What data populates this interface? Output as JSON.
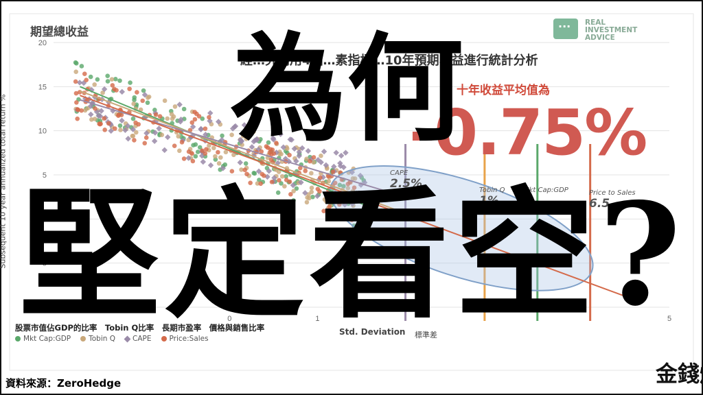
{
  "header": {
    "chart_title": "期望總收益",
    "subtitle": "經…究利用4個…素指標…10年預期收益進行統計分析",
    "avg_label": "十年收益平均值為",
    "big_value": "-0.75%",
    "headline_line1": "為何",
    "headline_line2": "堅定看空?"
  },
  "logo": {
    "text": "REAL\nINVESTMENT\nADVICE",
    "color": "#7fb89a"
  },
  "source": "資料來源：ZeroHedge",
  "brand_mark": "金錢爆",
  "axis": {
    "ylabel": "Subsequent 10 year annualized total return %",
    "xlabel": "Std. Deviation",
    "xlabel_zh": "標準差"
  },
  "legend_zh": "股票市值佔GDP的比率　Tobin Q比率　長期市盈率　價格與銷售比率",
  "legend": [
    {
      "name": "Mkt Cap:GDP",
      "color": "#5aa86a",
      "shape": "circle"
    },
    {
      "name": "Tobin Q",
      "color": "#c9a87a",
      "shape": "circle"
    },
    {
      "name": "CAPE",
      "color": "#9a8aa8",
      "shape": "diamond"
    },
    {
      "name": "Price:Sales",
      "color": "#d46a4a",
      "shape": "circle"
    }
  ],
  "annotations": [
    {
      "label": "CAPE",
      "value": "2.5%"
    },
    {
      "label": "Tobin Q",
      "value": "1%"
    },
    {
      "label": "Mkt Cap:GDP",
      "value": ""
    },
    {
      "label": "Price to Sales",
      "value": "6.5"
    }
  ],
  "chart_data": {
    "type": "scatter",
    "title": "期望總收益",
    "xlabel": "Std. Deviation",
    "ylabel": "Subsequent 10 year annualized total return %",
    "xlim": [
      -2,
      5
    ],
    "ylim": [
      -10,
      20
    ],
    "yticks": [
      20,
      15,
      10,
      5,
      0,
      -5,
      -10
    ],
    "xticks": [
      0,
      1,
      5
    ],
    "grid": true,
    "legend_position": "bottom",
    "series": [
      {
        "name": "Mkt Cap:GDP",
        "color": "#5aa86a"
      },
      {
        "name": "Tobin Q",
        "color": "#c9a87a"
      },
      {
        "name": "CAPE",
        "color": "#9a8aa8"
      },
      {
        "name": "Price:Sales",
        "color": "#d46a4a"
      }
    ],
    "trendlines": [
      {
        "series": "Mkt Cap:GDP",
        "points": [
          [
            -1.7,
            15.0
          ],
          [
            1.8,
            0.5
          ]
        ]
      },
      {
        "series": "Tobin Q",
        "points": [
          [
            -1.7,
            14.5
          ],
          [
            1.9,
            1.0
          ]
        ]
      },
      {
        "series": "CAPE",
        "points": [
          [
            -1.7,
            13.5
          ],
          [
            2.0,
            2.5
          ]
        ]
      },
      {
        "series": "Price:Sales",
        "points": [
          [
            -1.7,
            14.0
          ],
          [
            4.7,
            -9.5
          ]
        ]
      }
    ],
    "vertical_markers": [
      {
        "series": "CAPE",
        "x": 2.0,
        "value_label": "2.5%",
        "color": "#9a8aa8"
      },
      {
        "series": "Tobin Q",
        "x": 2.9,
        "value_label": "1%",
        "color": "#e8a24a"
      },
      {
        "series": "Mkt Cap:GDP",
        "x": 3.5,
        "value_label": "",
        "color": "#5aa86a"
      },
      {
        "series": "Price:Sales",
        "x": 4.1,
        "value_label": "6.5",
        "color": "#d46a4a"
      }
    ],
    "highlight_ellipse": {
      "center": [
        1.7,
        0.5
      ],
      "color": "#7fa0c8"
    },
    "scatter_cloud_note": "Hundreds of points per series forming a downward-sloping band from about (-1.7, 16) to (1.5, -2)."
  }
}
